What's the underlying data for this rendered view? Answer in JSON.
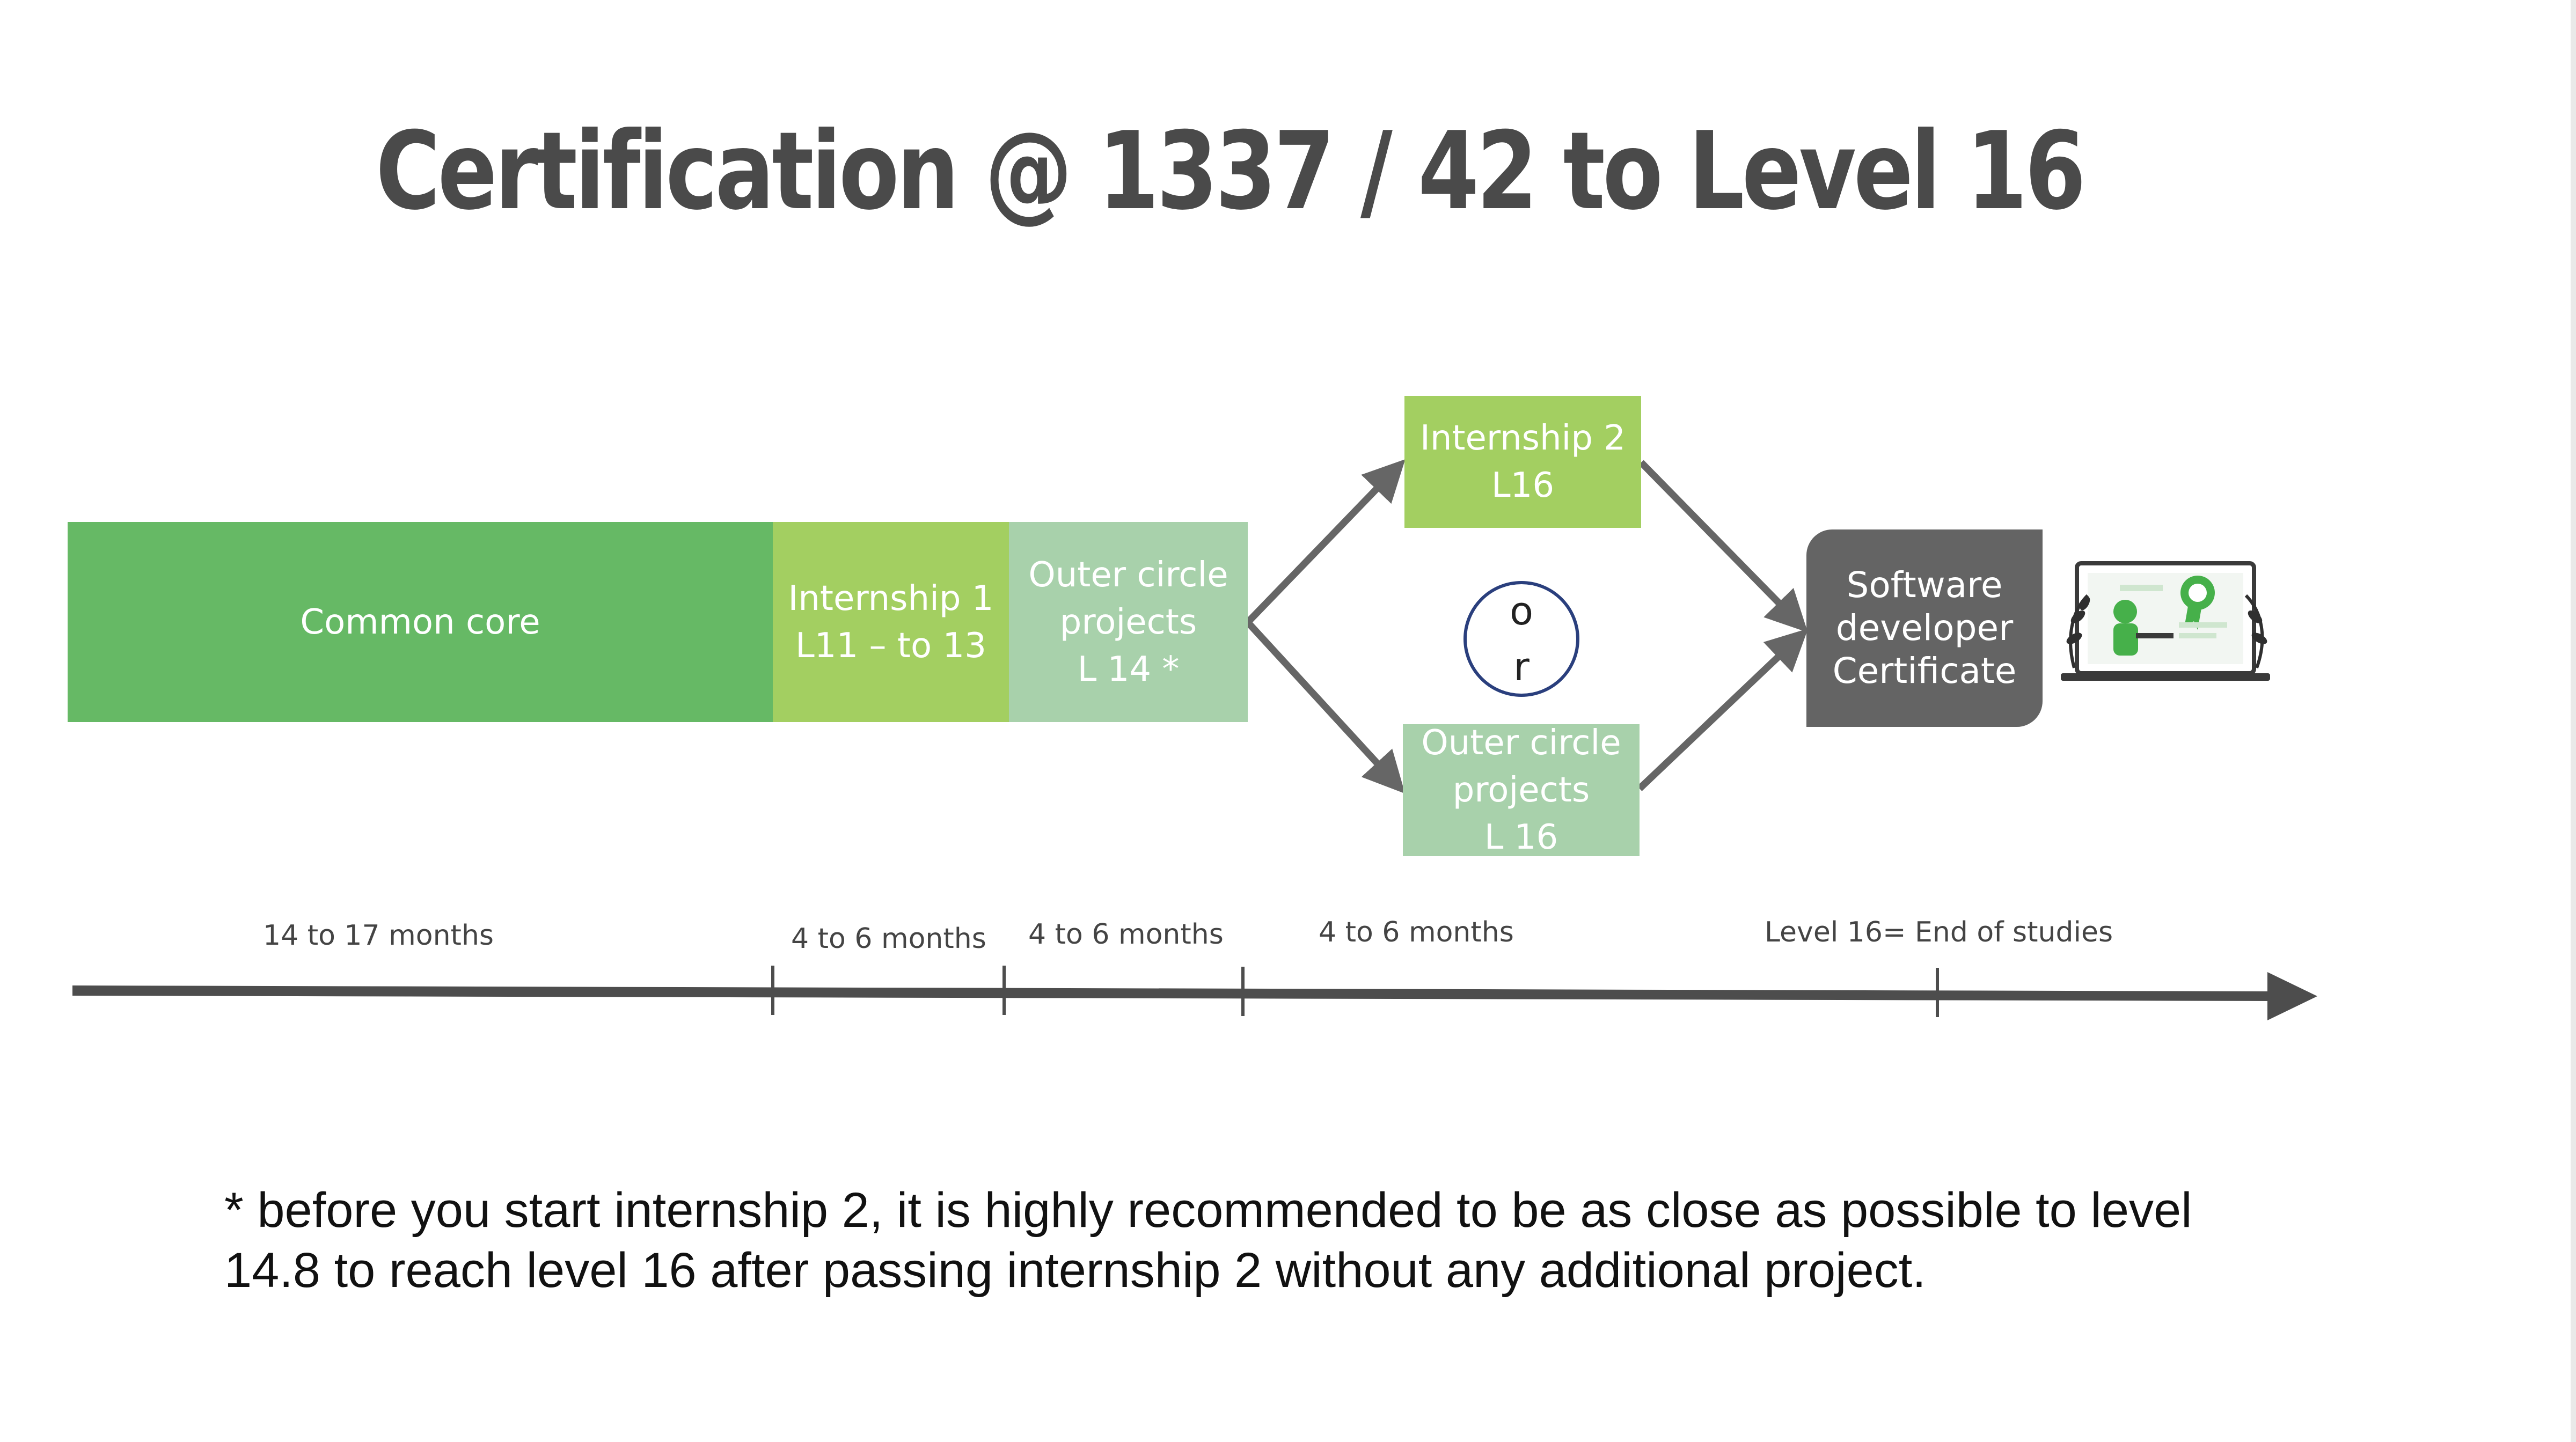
{
  "title": "Certification  @ 1337 / 42 to Level 16",
  "boxes": {
    "common_core": "Common core",
    "internship1": "Internship 1\nL11 – to 13",
    "outer_circle_14": "Outer circle\nprojects\nL 14 *",
    "internship2": "Internship 2\nL16",
    "outer_circle_16": "Outer circle\nprojects\nL 16",
    "certificate": "Software\ndeveloper\nCertificate",
    "or": "o\nr"
  },
  "timeline": {
    "labels": [
      "14 to 17 months",
      "4 to 6 months",
      "4 to 6 months",
      "4 to 6 months",
      "Level 16= End of studies"
    ]
  },
  "footnote": "* before you start internship 2, it is highly recommended to be as close as possible to level 14.8 to reach level 16 after passing internship 2 without any additional project.",
  "colors": {
    "common_core": "#66b965",
    "internship": "#a3cf61",
    "outer_circle": "#a8d1ab",
    "certificate": "#646464",
    "arrow": "#666666",
    "timeline": "#4d4d4d",
    "or_circle": "#2a3f7d"
  },
  "icons": [
    "certificate-illustration"
  ]
}
